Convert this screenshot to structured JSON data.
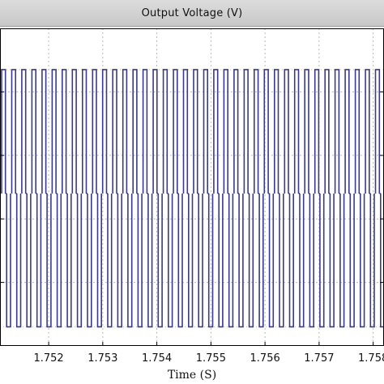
{
  "window": {
    "title": "Output Voltage (V)"
  },
  "chart_data": {
    "type": "line",
    "title": "Output Voltage (V)",
    "xlabel": "Time (S)",
    "ylabel": "",
    "x_ticks": [
      "1.752",
      "1.753",
      "1.754",
      "1.755",
      "1.756",
      "1.757",
      "1.758"
    ],
    "x_tick_values": [
      1.752,
      1.753,
      1.754,
      1.755,
      1.756,
      1.757,
      1.758
    ],
    "xlim": [
      1.7511,
      1.7582
    ],
    "ylim": [
      0,
      1
    ],
    "grid": true,
    "series": [
      {
        "high_level": 0.87,
        "low_level": 0.06,
        "zero_level": 0.48,
        "pulse_count": 38,
        "duty": 0.38
      }
    ],
    "colors": {
      "trace": "#3a3a8c",
      "grid": "#b8b8b8",
      "axes_background": "#ffffff",
      "frame": "#000000"
    }
  }
}
